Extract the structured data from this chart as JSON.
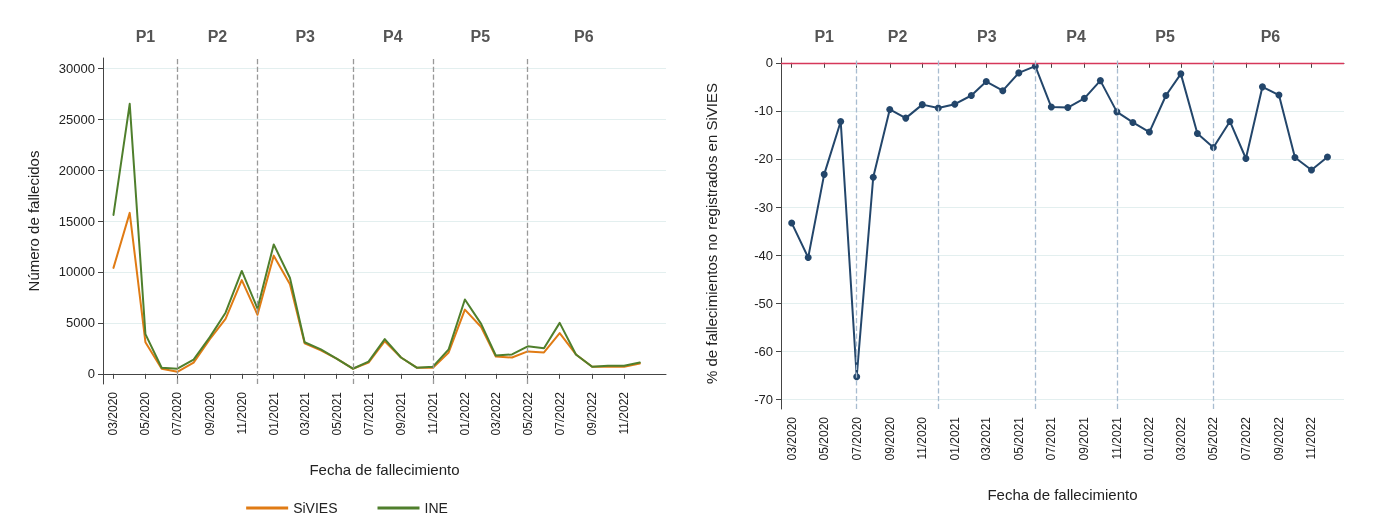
{
  "chart_data": [
    {
      "type": "line",
      "xlabel": "Fecha de fallecimiento",
      "ylabel": "Número de fallecidos",
      "x": [
        "2020-03",
        "2020-04",
        "2020-05",
        "2020-06",
        "2020-07",
        "2020-08",
        "2020-09",
        "2020-10",
        "2020-11",
        "2020-12",
        "2021-01",
        "2021-02",
        "2021-03",
        "2021-04",
        "2021-05",
        "2021-06",
        "2021-07",
        "2021-08",
        "2021-09",
        "2021-10",
        "2021-11",
        "2021-12",
        "2022-01",
        "2022-02",
        "2022-03",
        "2022-04",
        "2022-05",
        "2022-06",
        "2022-07",
        "2022-08",
        "2022-09",
        "2022-10",
        "2022-11",
        "2022-12"
      ],
      "series": [
        {
          "name": "SiVIES",
          "color": "#e07b14",
          "values": [
            10400,
            15800,
            3100,
            500,
            200,
            1100,
            3400,
            5400,
            9200,
            5800,
            11600,
            8800,
            3000,
            2300,
            1500,
            500,
            1100,
            3200,
            1600,
            600,
            600,
            2100,
            6300,
            4600,
            1700,
            1600,
            2200,
            2100,
            4000,
            1900,
            700,
            700,
            700,
            1000
          ]
        },
        {
          "name": "INE",
          "color": "#4f7f2c",
          "values": [
            15600,
            26500,
            3900,
            600,
            500,
            1400,
            3600,
            6000,
            10100,
            6400,
            12700,
            9400,
            3100,
            2400,
            1500,
            500,
            1200,
            3400,
            1600,
            600,
            700,
            2400,
            7300,
            4900,
            1800,
            1900,
            2700,
            2500,
            5000,
            1900,
            700,
            800,
            800,
            1100
          ]
        }
      ],
      "xlim": [
        "2020-02-10",
        "2023-01-20"
      ],
      "xticks": [
        {
          "value": "2020-03",
          "label": "03/2020"
        },
        {
          "value": "2020-05",
          "label": "05/2020"
        },
        {
          "value": "2020-07",
          "label": "07/2020"
        },
        {
          "value": "2020-09",
          "label": "09/2020"
        },
        {
          "value": "2020-11",
          "label": "11/2020"
        },
        {
          "value": "2021-01",
          "label": "01/2021"
        },
        {
          "value": "2021-03",
          "label": "03/2021"
        },
        {
          "value": "2021-05",
          "label": "05/2021"
        },
        {
          "value": "2021-07",
          "label": "07/2021"
        },
        {
          "value": "2021-09",
          "label": "09/2021"
        },
        {
          "value": "2021-11",
          "label": "11/2021"
        },
        {
          "value": "2022-01",
          "label": "01/2022"
        },
        {
          "value": "2022-03",
          "label": "03/2022"
        },
        {
          "value": "2022-05",
          "label": "05/2022"
        },
        {
          "value": "2022-07",
          "label": "07/2022"
        },
        {
          "value": "2022-09",
          "label": "09/2022"
        },
        {
          "value": "2022-11",
          "label": "11/2022"
        }
      ],
      "ylim": [
        -1000,
        31000
      ],
      "yticks": [
        0,
        5000,
        10000,
        15000,
        20000,
        25000,
        30000
      ],
      "grid": "y",
      "legend": "bottom",
      "marker": "none",
      "line_style": "solid",
      "ref_lines": [
        {
          "axis": "x",
          "value": "2020-07",
          "color": "#999999",
          "line_style": "dashed"
        },
        {
          "axis": "x",
          "value": "2020-12",
          "color": "#999999",
          "line_style": "dashed"
        },
        {
          "axis": "x",
          "value": "2021-06",
          "color": "#999999",
          "line_style": "dashed"
        },
        {
          "axis": "x",
          "value": "2021-11",
          "color": "#999999",
          "line_style": "dashed"
        },
        {
          "axis": "x",
          "value": "2022-05",
          "color": "#999999",
          "line_style": "dashed"
        }
      ],
      "annotations": [
        "P1",
        "P2",
        "P3",
        "P4",
        "P5",
        "P6"
      ]
    },
    {
      "type": "line",
      "xlabel": "Fecha de fallecimiento",
      "ylabel": "% de fallecimientos no registrados en SiVIES",
      "x": [
        "2020-03",
        "2020-04",
        "2020-05",
        "2020-06",
        "2020-07",
        "2020-08",
        "2020-09",
        "2020-10",
        "2020-11",
        "2020-12",
        "2021-01",
        "2021-02",
        "2021-03",
        "2021-04",
        "2021-05",
        "2021-06",
        "2021-07",
        "2021-08",
        "2021-09",
        "2021-10",
        "2021-11",
        "2021-12",
        "2022-01",
        "2022-02",
        "2022-03",
        "2022-04",
        "2022-05",
        "2022-06",
        "2022-07",
        "2022-08",
        "2022-09",
        "2022-10",
        "2022-11",
        "2022-12"
      ],
      "series": [
        {
          "color": "#23466b",
          "values": [
            -33.3,
            -40.5,
            -23.2,
            -12.2,
            -65.3,
            -23.8,
            -9.7,
            -11.5,
            -8.7,
            -9.4,
            -8.6,
            -6.8,
            -3.9,
            -5.8,
            -2.1,
            -0.7,
            -9.2,
            -9.3,
            -7.4,
            -3.7,
            -10.2,
            -12.4,
            -14.4,
            -6.8,
            -2.3,
            -14.7,
            -17.6,
            -12.2,
            -19.9,
            -5.0,
            -6.7,
            -19.7,
            -22.3,
            -19.6
          ]
        }
      ],
      "xlim": [
        "2020-02-10",
        "2023-01-01"
      ],
      "xticks": [
        {
          "value": "2020-03",
          "label": "03/2020"
        },
        {
          "value": "2020-05",
          "label": "05/2020"
        },
        {
          "value": "2020-07",
          "label": "07/2020"
        },
        {
          "value": "2020-09",
          "label": "09/2020"
        },
        {
          "value": "2020-11",
          "label": "11/2020"
        },
        {
          "value": "2021-01",
          "label": "01/2021"
        },
        {
          "value": "2021-03",
          "label": "03/2021"
        },
        {
          "value": "2021-05",
          "label": "05/2021"
        },
        {
          "value": "2021-07",
          "label": "07/2021"
        },
        {
          "value": "2021-09",
          "label": "09/2021"
        },
        {
          "value": "2021-11",
          "label": "11/2021"
        },
        {
          "value": "2022-01",
          "label": "01/2022"
        },
        {
          "value": "2022-03",
          "label": "03/2022"
        },
        {
          "value": "2022-05",
          "label": "05/2022"
        },
        {
          "value": "2022-07",
          "label": "07/2022"
        },
        {
          "value": "2022-09",
          "label": "09/2022"
        },
        {
          "value": "2022-11",
          "label": "11/2022"
        }
      ],
      "ylim": [
        -72,
        1
      ],
      "yticks": [
        0,
        -10,
        -20,
        -30,
        -40,
        -50,
        -60,
        -70
      ],
      "grid": "y",
      "legend": false,
      "marker": "circle",
      "line_style": "solid",
      "ref_lines": [
        {
          "axis": "y",
          "value": 0,
          "color": "#d6375a",
          "line_style": "solid"
        },
        {
          "axis": "x",
          "value": "2020-07",
          "color": "#a8bcd0",
          "line_style": "dashed"
        },
        {
          "axis": "x",
          "value": "2020-12",
          "color": "#a8bcd0",
          "line_style": "dashed"
        },
        {
          "axis": "x",
          "value": "2021-06",
          "color": "#a8bcd0",
          "line_style": "dashed"
        },
        {
          "axis": "x",
          "value": "2021-11",
          "color": "#a8bcd0",
          "line_style": "dashed"
        },
        {
          "axis": "x",
          "value": "2022-05",
          "color": "#a8bcd0",
          "line_style": "dashed"
        }
      ],
      "annotations": [
        "P1",
        "P2",
        "P3",
        "P4",
        "P5",
        "P6"
      ]
    }
  ]
}
